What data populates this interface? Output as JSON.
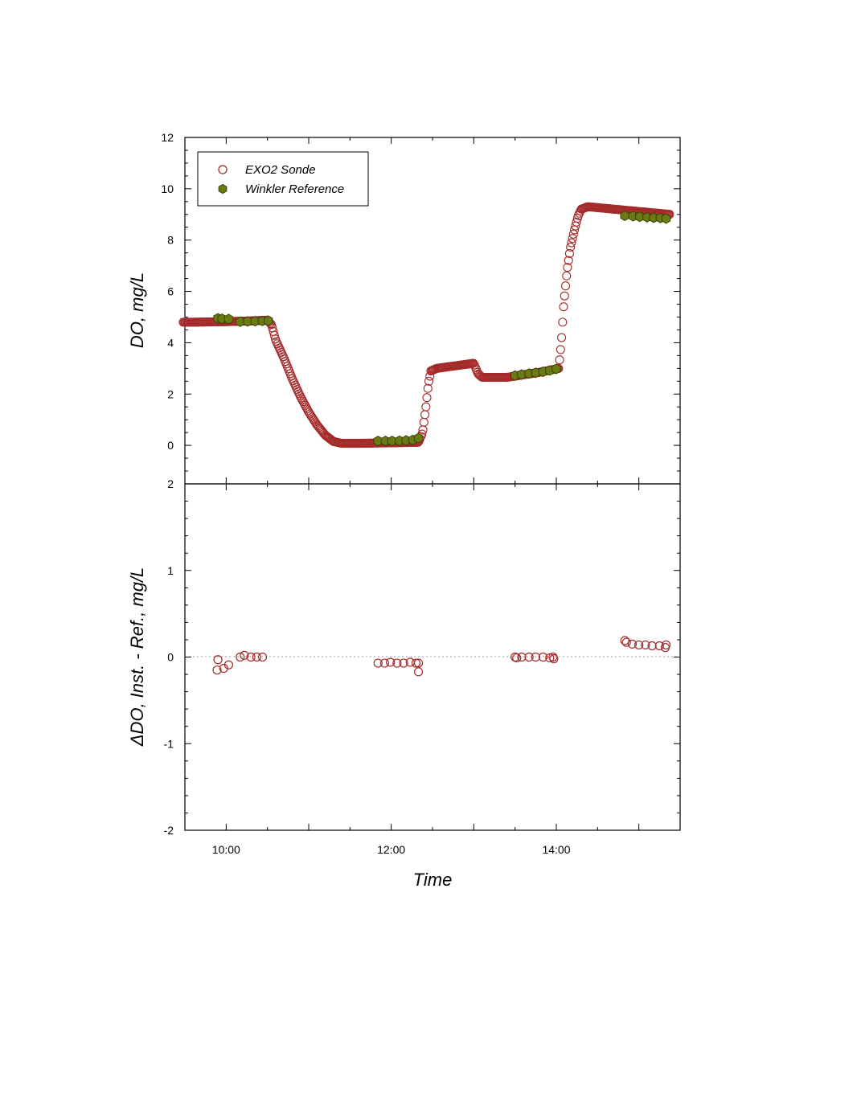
{
  "colors": {
    "sonde": "#a52a2a",
    "winkler_fill": "#6b7a12",
    "winkler_stroke": "#3a4208",
    "zero_line": "#999999"
  },
  "chart_data": [
    {
      "type": "scatter",
      "panel": "top",
      "ylabel": "DO, mg/L",
      "xlabel": "",
      "xlim_hours": [
        9.5,
        15.5
      ],
      "ylim": [
        -1.5,
        12
      ],
      "yticks": [
        0,
        2,
        4,
        6,
        8,
        10,
        12
      ],
      "ytick_labels": [
        "0",
        "2",
        "4",
        "6",
        "8",
        "10",
        "12"
      ],
      "legend": {
        "position": "top-left",
        "entries": [
          {
            "name": "EXO2 Sonde",
            "marker": "open-circle"
          },
          {
            "name": "Winkler Reference",
            "marker": "filled-hexagon"
          }
        ]
      },
      "series": [
        {
          "name": "EXO2 Sonde",
          "profile": [
            [
              9.48,
              4.8
            ],
            [
              9.6,
              4.8
            ],
            [
              10.0,
              4.82
            ],
            [
              10.3,
              4.85
            ],
            [
              10.5,
              4.88
            ],
            [
              10.55,
              4.7
            ],
            [
              10.6,
              4.1
            ],
            [
              10.7,
              3.4
            ],
            [
              10.8,
              2.6
            ],
            [
              10.9,
              1.9
            ],
            [
              11.0,
              1.3
            ],
            [
              11.1,
              0.8
            ],
            [
              11.2,
              0.4
            ],
            [
              11.3,
              0.15
            ],
            [
              11.4,
              0.08
            ],
            [
              11.6,
              0.08
            ],
            [
              12.0,
              0.1
            ],
            [
              12.33,
              0.12
            ],
            [
              12.38,
              0.5
            ],
            [
              12.42,
              1.5
            ],
            [
              12.45,
              2.4
            ],
            [
              12.48,
              2.9
            ],
            [
              12.55,
              3.0
            ],
            [
              13.0,
              3.2
            ],
            [
              13.05,
              2.8
            ],
            [
              13.1,
              2.65
            ],
            [
              13.4,
              2.65
            ],
            [
              13.8,
              2.85
            ],
            [
              14.03,
              3.0
            ],
            [
              14.06,
              4.0
            ],
            [
              14.09,
              5.5
            ],
            [
              14.13,
              6.8
            ],
            [
              14.17,
              7.7
            ],
            [
              14.22,
              8.4
            ],
            [
              14.26,
              8.9
            ],
            [
              14.3,
              9.2
            ],
            [
              14.38,
              9.3
            ],
            [
              15.38,
              9.0
            ]
          ],
          "sampling_interval_hours": 0.012
        },
        {
          "name": "Winkler Reference",
          "x": [
            9.9,
            9.95,
            10.03,
            10.17,
            10.26,
            10.35,
            10.44,
            10.51,
            11.84,
            11.93,
            12.01,
            12.1,
            12.18,
            12.26,
            12.33,
            13.5,
            13.58,
            13.67,
            13.75,
            13.84,
            13.92,
            14.0,
            14.83,
            14.93,
            15.01,
            15.1,
            15.18,
            15.26,
            15.33
          ],
          "y": [
            4.95,
            4.93,
            4.92,
            4.82,
            4.83,
            4.84,
            4.85,
            4.86,
            0.17,
            0.17,
            0.17,
            0.18,
            0.19,
            0.21,
            0.28,
            2.72,
            2.76,
            2.8,
            2.83,
            2.87,
            2.92,
            2.98,
            8.95,
            8.93,
            8.91,
            8.89,
            8.87,
            8.86,
            8.84
          ]
        }
      ]
    },
    {
      "type": "scatter",
      "panel": "bottom",
      "ylabel": "ΔDO, Inst. - Ref., mg/L",
      "xlabel": "Time",
      "xlim_hours": [
        9.5,
        15.5
      ],
      "ylim": [
        -2,
        2
      ],
      "yticks": [
        -2,
        -1,
        0,
        1,
        2
      ],
      "ytick_labels": [
        "-2",
        "-1",
        "0",
        "1",
        "2"
      ],
      "xticks_hours": [
        10,
        12,
        14
      ],
      "xtick_labels": [
        "10:00",
        "12:00",
        "14:00"
      ],
      "zero_line": true,
      "series": [
        {
          "name": "EXO2 Sonde",
          "x": [
            9.89,
            9.9,
            9.97,
            10.03,
            10.17,
            10.22,
            10.3,
            10.37,
            10.44,
            11.84,
            11.92,
            11.99,
            12.07,
            12.15,
            12.23,
            12.3,
            12.33,
            12.33,
            13.5,
            13.52,
            13.58,
            13.67,
            13.75,
            13.84,
            13.92,
            13.96,
            13.97,
            14.83,
            14.85,
            14.92,
            15.0,
            15.08,
            15.16,
            15.25,
            15.32,
            15.33
          ],
          "y": [
            -0.15,
            -0.03,
            -0.13,
            -0.09,
            0.0,
            0.02,
            0.0,
            0.0,
            0.0,
            -0.07,
            -0.07,
            -0.06,
            -0.07,
            -0.07,
            -0.06,
            -0.07,
            -0.07,
            -0.17,
            0.0,
            -0.01,
            0.0,
            0.0,
            0.0,
            0.0,
            -0.01,
            0.0,
            -0.02,
            0.19,
            0.17,
            0.15,
            0.14,
            0.14,
            0.13,
            0.13,
            0.11,
            0.14
          ]
        }
      ]
    }
  ]
}
